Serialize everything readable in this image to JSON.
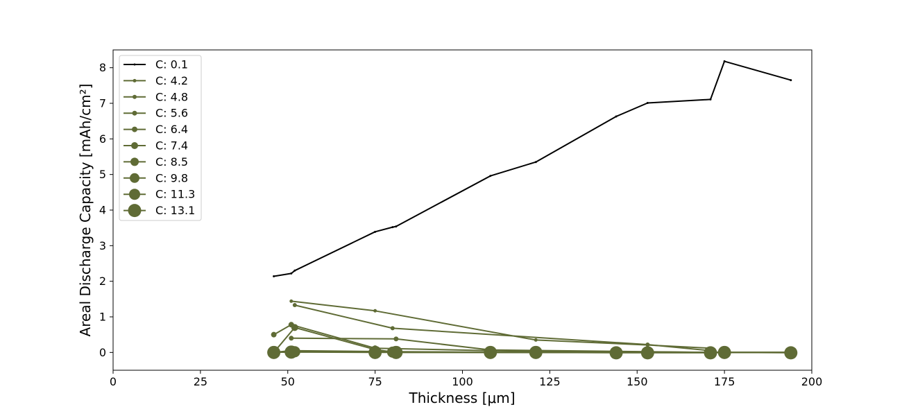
{
  "chart_data": {
    "type": "line",
    "xlabel": "Thickness [μm]",
    "ylabel": "Areal Discharge Capacity [mAh/cm²]",
    "xlim": [
      0,
      200
    ],
    "ylim": [
      -0.5,
      8.5
    ],
    "xticks": [
      "0",
      "25",
      "50",
      "75",
      "100",
      "125",
      "150",
      "175",
      "200"
    ],
    "yticks": [
      "0",
      "1",
      "2",
      "3",
      "4",
      "5",
      "6",
      "7",
      "8"
    ],
    "grid": false,
    "legend_position": "upper-left",
    "colors": {
      "c01": "#000000",
      "series": "#5f6b35"
    },
    "series": [
      {
        "name": "C: 0.1",
        "x": [
          46,
          51,
          52,
          75,
          80,
          81,
          108,
          121,
          144,
          153,
          171,
          175,
          194
        ],
        "y": [
          2.14,
          2.22,
          2.3,
          3.39,
          3.52,
          3.54,
          4.96,
          5.35,
          6.63,
          7.01,
          7.11,
          8.18,
          7.65
        ]
      },
      {
        "name": "C: 4.2",
        "x": [
          51,
          75,
          121,
          153,
          171
        ],
        "y": [
          1.44,
          1.17,
          0.35,
          0.21,
          0.12
        ]
      },
      {
        "name": "C: 4.8",
        "x": [
          52,
          80,
          153,
          171
        ],
        "y": [
          1.33,
          0.68,
          0.22,
          0.05
        ]
      },
      {
        "name": "C: 5.6",
        "x": [
          51,
          81,
          108,
          171
        ],
        "y": [
          0.4,
          0.38,
          0.07,
          0.0
        ]
      },
      {
        "name": "C: 6.4",
        "x": [
          46,
          51,
          75,
          108,
          175
        ],
        "y": [
          0.5,
          0.78,
          0.12,
          0.05,
          0.0
        ]
      },
      {
        "name": "C: 7.4",
        "x": [
          46,
          52,
          75,
          81,
          194
        ],
        "y": [
          0.0,
          0.7,
          0.08,
          0.0,
          0.0
        ]
      },
      {
        "name": "C: 8.5",
        "x": [
          46,
          51,
          81,
          121,
          194
        ],
        "y": [
          0.0,
          0.05,
          0.02,
          0.0,
          0.0
        ]
      },
      {
        "name": "C: 9.8",
        "x": [
          46,
          51,
          75,
          108,
          144,
          194
        ],
        "y": [
          0.0,
          0.03,
          0.02,
          0.0,
          0.0,
          0.0
        ]
      },
      {
        "name": "C: 11.3",
        "x": [
          46,
          52,
          80,
          121,
          153,
          194
        ],
        "y": [
          0.0,
          0.02,
          0.01,
          0.0,
          0.0,
          0.0
        ]
      },
      {
        "name": "C: 13.1",
        "x": [
          46,
          51,
          75,
          81,
          108,
          121,
          144,
          153,
          171,
          175,
          194
        ],
        "y": [
          0.0,
          0.01,
          0.0,
          0.0,
          0.0,
          0.0,
          -0.01,
          -0.01,
          -0.01,
          0.0,
          -0.01
        ]
      }
    ]
  }
}
